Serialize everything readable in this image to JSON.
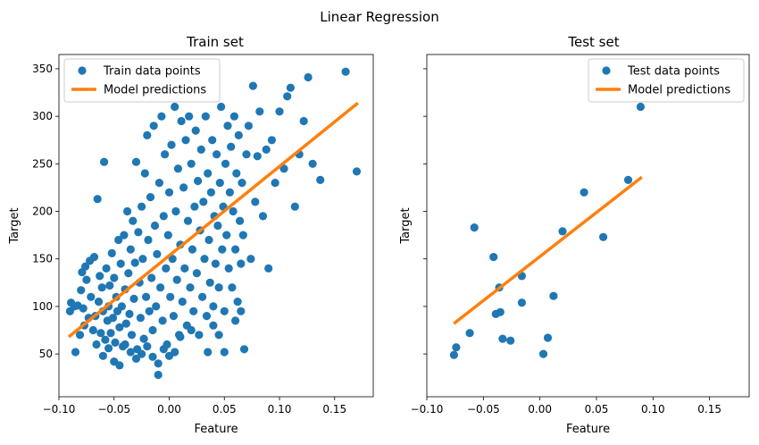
{
  "figure": {
    "title": "Linear Regression"
  },
  "colors": {
    "points": "#1f77b4",
    "line": "#ff7f0e"
  },
  "chart_data": [
    {
      "type": "scatter",
      "title": "Train set",
      "xlabel": "Feature",
      "ylabel": "Target",
      "xlim": [
        -0.1,
        0.185
      ],
      "ylim": [
        5,
        365
      ],
      "xticks": [
        -0.1,
        -0.05,
        0.0,
        0.05,
        0.1,
        0.15
      ],
      "xtick_labels": [
        "−0.10",
        "−0.05",
        "0.00",
        "0.05",
        "0.10",
        "0.15"
      ],
      "yticks": [
        50,
        100,
        150,
        200,
        250,
        300,
        350
      ],
      "ytick_labels": [
        "50",
        "100",
        "150",
        "200",
        "250",
        "300",
        "350"
      ],
      "show_yticklabels": true,
      "legend": {
        "position": "top-left"
      },
      "series": [
        {
          "name": "Train data points",
          "kind": "scatter",
          "points": [
            [
              -0.09,
              95
            ],
            [
              -0.089,
              104
            ],
            [
              -0.086,
              100
            ],
            [
              -0.083,
              101
            ],
            [
              -0.081,
              70
            ],
            [
              -0.08,
              117
            ],
            [
              -0.079,
              136
            ],
            [
              -0.078,
              98
            ],
            [
              -0.077,
              80
            ],
            [
              -0.076,
              142
            ],
            [
              -0.075,
              128
            ],
            [
              -0.073,
              88
            ],
            [
              -0.072,
              148
            ],
            [
              -0.071,
              110
            ],
            [
              -0.069,
              75
            ],
            [
              -0.068,
              152
            ],
            [
              -0.067,
              90
            ],
            [
              -0.066,
              60
            ],
            [
              -0.065,
              213
            ],
            [
              -0.064,
              105
            ],
            [
              -0.063,
              132
            ],
            [
              -0.062,
              72
            ],
            [
              -0.061,
              120
            ],
            [
              -0.06,
              95
            ],
            [
              -0.059,
              252
            ],
            [
              -0.058,
              65
            ],
            [
              -0.057,
              140
            ],
            [
              -0.056,
              85
            ],
            [
              -0.055,
              100
            ],
            [
              -0.054,
              122
            ],
            [
              -0.053,
              72
            ],
            [
              -0.052,
              156
            ],
            [
              -0.051,
              88
            ],
            [
              -0.05,
              130
            ],
            [
              -0.049,
              62
            ],
            [
              -0.048,
              110
            ],
            [
              -0.047,
              95
            ],
            [
              -0.046,
              170
            ],
            [
              -0.045,
              78
            ],
            [
              -0.044,
              145
            ],
            [
              -0.043,
              100
            ],
            [
              -0.042,
              58
            ],
            [
              -0.041,
              175
            ],
            [
              -0.04,
              118
            ],
            [
              -0.039,
              82
            ],
            [
              -0.038,
              200
            ],
            [
              -0.037,
              135
            ],
            [
              -0.036,
              92
            ],
            [
              -0.035,
              160
            ],
            [
              -0.034,
              70
            ],
            [
              -0.033,
              190
            ],
            [
              -0.032,
              108
            ],
            [
              -0.031,
              146
            ],
            [
              -0.03,
              252
            ],
            [
              -0.029,
              55
            ],
            [
              -0.028,
              178
            ],
            [
              -0.027,
              125
            ],
            [
              -0.026,
              88
            ],
            [
              -0.025,
              205
            ],
            [
              -0.024,
              150
            ],
            [
              -0.023,
              66
            ],
            [
              -0.022,
              240
            ],
            [
              -0.021,
              110
            ],
            [
              -0.02,
              280
            ],
            [
              -0.019,
              170
            ],
            [
              -0.018,
              95
            ],
            [
              -0.017,
              215
            ],
            [
              -0.016,
              130
            ],
            [
              -0.015,
              75
            ],
            [
              -0.014,
              290
            ],
            [
              -0.013,
              185
            ],
            [
              -0.012,
              100
            ],
            [
              -0.011,
              155
            ],
            [
              -0.01,
              40
            ],
            [
              -0.009,
              230
            ],
            [
              -0.008,
              120
            ],
            [
              -0.007,
              300
            ],
            [
              -0.006,
              85
            ],
            [
              -0.005,
              195
            ],
            [
              -0.004,
              260
            ],
            [
              -0.003,
              140
            ],
            [
              -0.002,
              60
            ],
            [
              -0.001,
              175
            ],
            [
              0.0,
              220
            ],
            [
              0.001,
              110
            ],
            [
              0.002,
              270
            ],
            [
              0.003,
              150
            ],
            [
              0.004,
              90
            ],
            [
              0.005,
              310
            ],
            [
              0.006,
              200
            ],
            [
              0.007,
              128
            ],
            [
              0.008,
              245
            ],
            [
              0.009,
              70
            ],
            [
              0.01,
              165
            ],
            [
              0.011,
              295
            ],
            [
              0.012,
              105
            ],
            [
              0.013,
              225
            ],
            [
              0.014,
              140
            ],
            [
              0.015,
              275
            ],
            [
              0.016,
              80
            ],
            [
              0.017,
              190
            ],
            [
              0.018,
              300
            ],
            [
              0.019,
              120
            ],
            [
              0.02,
              250
            ],
            [
              0.021,
              160
            ],
            [
              0.022,
              95
            ],
            [
              0.023,
              205
            ],
            [
              0.024,
              285
            ],
            [
              0.025,
              135
            ],
            [
              0.026,
              232
            ],
            [
              0.027,
              70
            ],
            [
              0.028,
              180
            ],
            [
              0.029,
              265
            ],
            [
              0.03,
              110
            ],
            [
              0.031,
              210
            ],
            [
              0.032,
              150
            ],
            [
              0.033,
              300
            ],
            [
              0.034,
              90
            ],
            [
              0.035,
              240
            ],
            [
              0.036,
              170
            ],
            [
              0.037,
              125
            ],
            [
              0.038,
              220
            ],
            [
              0.039,
              275
            ],
            [
              0.04,
              100
            ],
            [
              0.041,
              195
            ],
            [
              0.042,
              145
            ],
            [
              0.043,
              260
            ],
            [
              0.044,
              185
            ],
            [
              0.045,
              120
            ],
            [
              0.046,
              230
            ],
            [
              0.047,
              310
            ],
            [
              0.048,
              160
            ],
            [
              0.049,
              205
            ],
            [
              0.05,
              95
            ],
            [
              0.051,
              250
            ],
            [
              0.052,
              175
            ],
            [
              0.053,
              290
            ],
            [
              0.054,
              140
            ],
            [
              0.055,
              220
            ],
            [
              0.056,
              268
            ],
            [
              0.057,
              120
            ],
            [
              0.058,
              200
            ],
            [
              0.059,
              300
            ],
            [
              0.06,
              160
            ],
            [
              0.061,
              240
            ],
            [
              0.062,
              105
            ],
            [
              0.063,
              280
            ],
            [
              0.064,
              190
            ],
            [
              0.065,
              145
            ],
            [
              0.066,
              230
            ],
            [
              0.067,
              175
            ],
            [
              0.068,
              55
            ],
            [
              0.07,
              260
            ],
            [
              0.072,
              290
            ],
            [
              0.074,
              150
            ],
            [
              0.076,
              332
            ],
            [
              0.078,
              210
            ],
            [
              0.08,
              258
            ],
            [
              0.082,
              305
            ],
            [
              0.085,
              195
            ],
            [
              0.088,
              265
            ],
            [
              0.09,
              140
            ],
            [
              0.093,
              275
            ],
            [
              0.096,
              230
            ],
            [
              0.1,
              305
            ],
            [
              0.104,
              245
            ],
            [
              0.107,
              321
            ],
            [
              0.11,
              330
            ],
            [
              0.114,
              205
            ],
            [
              0.118,
              260
            ],
            [
              0.122,
              295
            ],
            [
              0.126,
              341
            ],
            [
              0.13,
              250
            ],
            [
              0.137,
              233
            ],
            [
              0.16,
              347
            ],
            [
              0.17,
              242
            ],
            [
              -0.085,
              52
            ],
            [
              -0.06,
              48
            ],
            [
              -0.055,
              56
            ],
            [
              -0.05,
              42
            ],
            [
              -0.045,
              38
            ],
            [
              -0.04,
              60
            ],
            [
              -0.035,
              52
            ],
            [
              -0.03,
              45
            ],
            [
              -0.025,
              50
            ],
            [
              -0.02,
              58
            ],
            [
              -0.015,
              47
            ],
            [
              -0.01,
              28
            ],
            [
              -0.005,
              55
            ],
            [
              0.0,
              48
            ],
            [
              0.005,
              52
            ],
            [
              0.01,
              68
            ],
            [
              0.02,
              75
            ],
            [
              0.035,
              52
            ],
            [
              0.04,
              80
            ],
            [
              0.045,
              70
            ],
            [
              0.05,
              52
            ],
            [
              0.06,
              85
            ],
            [
              0.065,
              95
            ]
          ]
        },
        {
          "name": "Model predictions",
          "kind": "line",
          "points": [
            [
              -0.09,
              69
            ],
            [
              0.17,
              313
            ]
          ]
        }
      ]
    },
    {
      "type": "scatter",
      "title": "Test set",
      "xlabel": "Feature",
      "ylabel": "Target",
      "xlim": [
        -0.1,
        0.185
      ],
      "ylim": [
        5,
        365
      ],
      "xticks": [
        -0.1,
        -0.05,
        0.0,
        0.05,
        0.1,
        0.15
      ],
      "xtick_labels": [
        "−0.10",
        "−0.05",
        "0.00",
        "0.05",
        "0.10",
        "0.15"
      ],
      "yticks": [
        50,
        100,
        150,
        200,
        250,
        300,
        350
      ],
      "ytick_labels": [
        "",
        "",
        "",
        "",
        "",
        "",
        ""
      ],
      "show_yticklabels": false,
      "legend": {
        "position": "top-right"
      },
      "series": [
        {
          "name": "Test data points",
          "kind": "scatter",
          "points": [
            [
              -0.076,
              49
            ],
            [
              -0.074,
              57
            ],
            [
              -0.062,
              72
            ],
            [
              -0.058,
              183
            ],
            [
              -0.041,
              152
            ],
            [
              -0.039,
              92
            ],
            [
              -0.035,
              94
            ],
            [
              -0.036,
              120
            ],
            [
              -0.033,
              66
            ],
            [
              -0.026,
              64
            ],
            [
              -0.016,
              132
            ],
            [
              -0.016,
              104
            ],
            [
              0.003,
              50
            ],
            [
              0.007,
              67
            ],
            [
              0.012,
              111
            ],
            [
              0.02,
              179
            ],
            [
              0.039,
              220
            ],
            [
              0.056,
              173
            ],
            [
              0.078,
              233
            ],
            [
              0.089,
              310
            ]
          ]
        },
        {
          "name": "Model predictions",
          "kind": "line",
          "points": [
            [
              -0.075,
              83
            ],
            [
              0.089,
              235
            ]
          ]
        }
      ]
    }
  ]
}
